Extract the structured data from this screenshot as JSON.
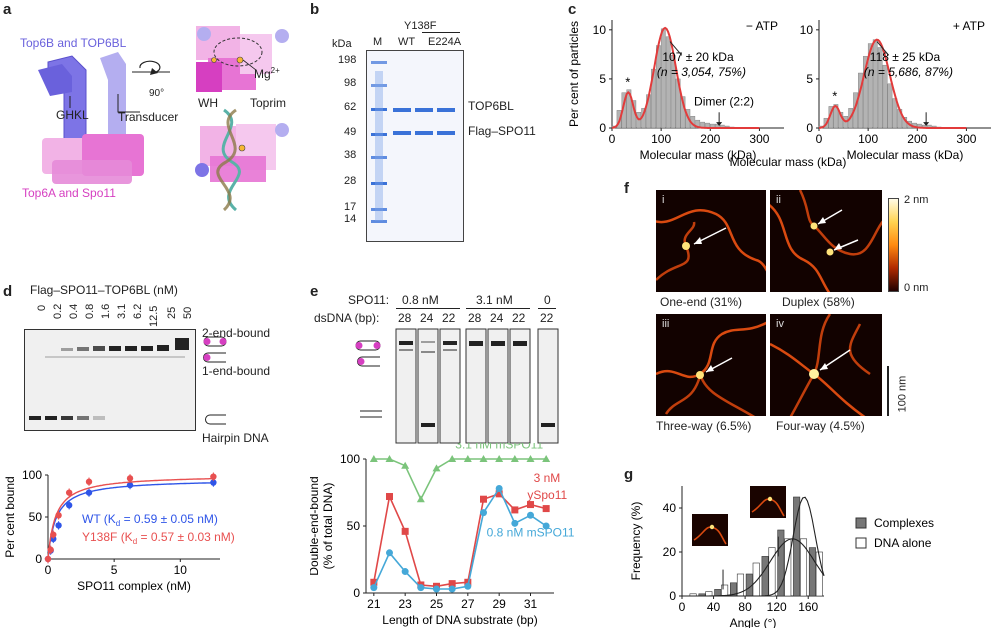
{
  "panels": {
    "a": "a",
    "b": "b",
    "c": "c",
    "d": "d",
    "e": "e",
    "f": "f",
    "g": "g"
  },
  "a": {
    "top6b_label": "Top6B and TOP6BL",
    "top6a_label": "Top6A and Spo11",
    "ghkl": "GHKL",
    "transducer": "Transducer",
    "rotation": "90°",
    "mg": "Mg",
    "mg_sup": "2+",
    "wh": "WH",
    "toprim": "Toprim",
    "colors": {
      "blue": "#7d74e6",
      "lightblue": "#b4aef0",
      "pink": "#e774d4",
      "lightpink": "#f2b3e6",
      "magenta": "#d63fc1"
    }
  },
  "b": {
    "kda": "kDa",
    "lanes": [
      "M",
      "WT",
      "E224A"
    ],
    "mutant": "Y138F",
    "markers": [
      "198",
      "98",
      "62",
      "49",
      "38",
      "28",
      "17",
      "14"
    ],
    "band_top": "TOP6BL",
    "band_bottom": "Flag–SPO11"
  },
  "d": {
    "title": "Flag–SPO11–TOP6BL (nM)",
    "concs": [
      "0",
      "0.2",
      "0.4",
      "0.8",
      "1.6",
      "3.1",
      "6.2",
      "12.5",
      "25",
      "50"
    ],
    "label_2end": "2-end-bound",
    "label_1end": "1-end-bound",
    "label_hairpin": "Hairpin DNA",
    "wt_fit": "WT (K",
    "wt_fit_sub": "d",
    "wt_fit_val": " = 0.59 ± 0.05 nM)",
    "mut_fit": "Y138F (K",
    "mut_fit_sub": "d",
    "mut_fit_val": " = 0.57 ± 0.03 nM)"
  },
  "e": {
    "spo11": "SPO11:",
    "dsdna": "dsDNA (bp):",
    "groups": [
      {
        "conc": "0.8 nM",
        "bp": [
          "28",
          "24",
          "22"
        ]
      },
      {
        "conc": "3.1 nM",
        "bp": [
          "28",
          "24",
          "22"
        ]
      },
      {
        "conc": "0",
        "bp": [
          "22"
        ]
      }
    ],
    "label_31": "3.1 nM mSPO11",
    "label_3": "3 nM",
    "label_3b": "ySpo11",
    "label_08": "0.8 nM mSPO11"
  },
  "f": {
    "scale_top": "2 nm",
    "scale_bottom": "0 nm",
    "scalebar": "100 nm",
    "images": [
      {
        "num": "i",
        "caption": "One-end (31%)"
      },
      {
        "num": "ii",
        "caption": "Duplex (58%)"
      },
      {
        "num": "iii",
        "caption": "Three-way (6.5%)"
      },
      {
        "num": "iv",
        "caption": "Four-way (4.5%)"
      }
    ]
  },
  "g": {
    "legend": [
      "Complexes",
      "DNA alone"
    ]
  },
  "chart_data": [
    {
      "panel": "c-left",
      "type": "bar",
      "title": "− ATP",
      "xlabel": "Molecular mass (kDa)",
      "ylabel": "Per cent of particles",
      "xlim": [
        0,
        350
      ],
      "ylim": [
        0,
        11
      ],
      "xticks": [
        "0",
        "100",
        "200",
        "300"
      ],
      "yticks": [
        "0",
        "5",
        "10"
      ],
      "bin_width": 10,
      "x": [
        5,
        15,
        25,
        35,
        45,
        55,
        65,
        75,
        85,
        95,
        105,
        115,
        125,
        135,
        145,
        155,
        165,
        175,
        185,
        195,
        205,
        215,
        225,
        235,
        245
      ],
      "values": [
        0.2,
        1.8,
        3.6,
        3.9,
        2.8,
        1.6,
        2.0,
        3.4,
        6.0,
        8.4,
        10.1,
        9.3,
        7.4,
        5.0,
        3.2,
        1.9,
        1.2,
        0.8,
        0.6,
        0.5,
        0.4,
        0.4,
        0.3,
        0.2,
        0.1
      ],
      "annotations": [
        "*",
        "107 ± 20 kDa",
        "(n = 3,054, 75%)",
        "Dimer (2:2)"
      ]
    },
    {
      "panel": "c-right",
      "type": "bar",
      "title": "+ ATP",
      "xlabel": "Molecular mass (kDa)",
      "ylabel": "",
      "xlim": [
        0,
        350
      ],
      "ylim": [
        0,
        11
      ],
      "xticks": [
        "0",
        "100",
        "200",
        "300"
      ],
      "yticks": [
        "0",
        "5",
        "10"
      ],
      "bin_width": 10,
      "x": [
        5,
        15,
        25,
        35,
        45,
        55,
        65,
        75,
        85,
        95,
        105,
        115,
        125,
        135,
        145,
        155,
        165,
        175,
        185,
        195,
        205,
        215,
        225,
        235,
        245
      ],
      "values": [
        0.2,
        1.0,
        2.2,
        2.4,
        1.6,
        1.2,
        2.0,
        3.6,
        5.6,
        7.3,
        8.6,
        9.0,
        8.2,
        6.4,
        4.5,
        3.0,
        1.9,
        1.1,
        0.7,
        0.5,
        0.4,
        0.3,
        0.3,
        0.2,
        0.1
      ],
      "annotations": [
        "*",
        "118 ± 25 kDa",
        "(n = 5,686, 87%)"
      ]
    },
    {
      "panel": "d",
      "type": "scatter",
      "xlabel": "SPO11 complex (nM)",
      "ylabel": "Per cent bound",
      "xlim": [
        0,
        13
      ],
      "ylim": [
        0,
        100
      ],
      "xticks": [
        "0",
        "5",
        "10"
      ],
      "yticks": [
        "0",
        "50",
        "100"
      ],
      "series": [
        {
          "name": "WT",
          "color": "#2f55e8",
          "x": [
            0,
            0.2,
            0.4,
            0.8,
            1.6,
            3.1,
            6.2,
            12.5
          ],
          "values": [
            0,
            10,
            24,
            40,
            64,
            79,
            88,
            91
          ]
        },
        {
          "name": "Y138F",
          "color": "#e85050",
          "x": [
            0,
            0.2,
            0.4,
            0.8,
            1.6,
            3.1,
            6.2,
            12.5
          ],
          "values": [
            0,
            11,
            29,
            52,
            79,
            92,
            96,
            98
          ]
        }
      ]
    },
    {
      "panel": "e",
      "type": "line",
      "xlabel": "Length of DNA substrate (bp)",
      "ylabel": "Double-end-bound (% of total DNA)",
      "xlim": [
        20.5,
        32.5
      ],
      "ylim": [
        0,
        100
      ],
      "xticks": [
        "21",
        "23",
        "25",
        "27",
        "29",
        "31"
      ],
      "yticks": [
        "0",
        "50",
        "100"
      ],
      "x": [
        21,
        22,
        23,
        24,
        25,
        26,
        27,
        28,
        29,
        30,
        31,
        32
      ],
      "series": [
        {
          "name": "3.1 nM mSPO11",
          "color": "#7bc47b",
          "values": [
            100,
            100,
            95,
            70,
            93,
            100,
            100,
            100,
            100,
            100,
            100,
            100
          ]
        },
        {
          "name": "3 nM ySpo11",
          "color": "#e04848",
          "values": [
            8,
            72,
            46,
            6,
            5,
            7,
            8,
            70,
            74,
            62,
            66,
            63
          ]
        },
        {
          "name": "0.8 nM mSPO11",
          "color": "#45a8d8",
          "values": [
            4,
            30,
            16,
            4,
            3,
            3,
            5,
            60,
            78,
            52,
            58,
            50
          ]
        }
      ]
    },
    {
      "panel": "g",
      "type": "bar",
      "xlabel": "Angle (°)",
      "ylabel": "Frequency (%)",
      "xlim": [
        0,
        180
      ],
      "ylim": [
        0,
        50
      ],
      "xticks": [
        "0",
        "40",
        "80",
        "120",
        "160"
      ],
      "yticks": [
        "0",
        "20",
        "40"
      ],
      "categories": [
        10,
        30,
        50,
        70,
        90,
        110,
        130,
        150,
        170
      ],
      "series": [
        {
          "name": "Complexes",
          "values": [
            0,
            1,
            3,
            6,
            10,
            18,
            30,
            45,
            22
          ]
        },
        {
          "name": "DNA alone",
          "values": [
            1,
            2,
            5,
            10,
            15,
            22,
            26,
            26,
            20
          ]
        }
      ]
    }
  ]
}
